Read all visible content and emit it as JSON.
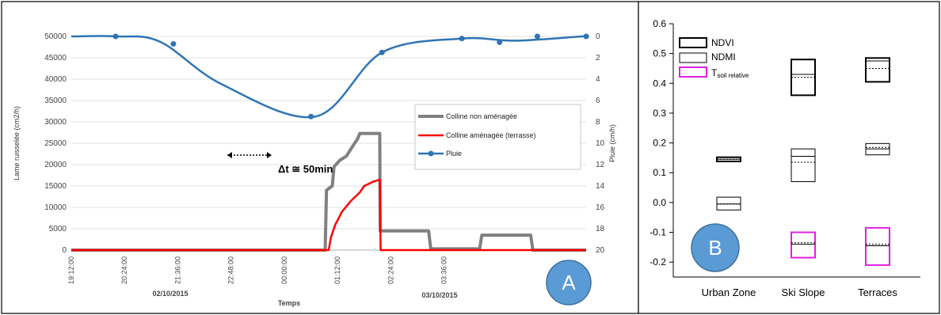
{
  "chart_data": [
    {
      "type": "line",
      "panel_label": "A",
      "xlabel": "Temps",
      "ylabel": "Lame ruisselée (cm2/h)",
      "ylabel_right": "Pluie (cm/h)",
      "x_ticks": [
        "19:12:00",
        "20:24:00",
        "21:36:00",
        "22:48:00",
        "00:00:00",
        "01:12:00",
        "02:24:00",
        "03:36:00"
      ],
      "dates": [
        "02/10/2015",
        "03/10/2015"
      ],
      "ylim": [
        0,
        50000
      ],
      "y_ticks": [
        "0",
        "5000",
        "10000",
        "15000",
        "20000",
        "25000",
        "30000",
        "35000",
        "40000",
        "45000",
        "50000"
      ],
      "ylim_right": [
        20,
        0
      ],
      "y_ticks_right": [
        "0",
        "2",
        "4",
        "6",
        "8",
        "10",
        "12",
        "14",
        "16",
        "18",
        "20"
      ],
      "annotation": "Δt ≅ 50min",
      "grid": true,
      "legend_position": "right",
      "series": [
        {
          "name": "Colline non aménagée",
          "color": "#808080",
          "axis": "left",
          "points": [
            [
              0,
              0
            ],
            [
              5.72,
              0
            ],
            [
              5.75,
              14000
            ],
            [
              5.88,
              15000
            ],
            [
              5.92,
              19500
            ],
            [
              6.05,
              21000
            ],
            [
              6.2,
              22000
            ],
            [
              6.32,
              24000
            ],
            [
              6.45,
              26000
            ],
            [
              6.5,
              27300
            ],
            [
              6.95,
              27300
            ],
            [
              6.96,
              4500
            ],
            [
              8.05,
              4500
            ],
            [
              8.1,
              300
            ],
            [
              9.2,
              300
            ],
            [
              9.25,
              3500
            ],
            [
              10.35,
              3500
            ],
            [
              10.4,
              0
            ],
            [
              11.6,
              0
            ]
          ]
        },
        {
          "name": "Colline aménagée (terrasse)",
          "color": "#ff0000",
          "axis": "left",
          "points": [
            [
              0,
              0
            ],
            [
              5.8,
              0
            ],
            [
              5.85,
              3000
            ],
            [
              5.95,
              6000
            ],
            [
              6.1,
              9000
            ],
            [
              6.3,
              11500
            ],
            [
              6.5,
              13500
            ],
            [
              6.6,
              15000
            ],
            [
              6.8,
              16000
            ],
            [
              6.95,
              16500
            ],
            [
              6.97,
              0
            ],
            [
              11.6,
              0
            ]
          ]
        },
        {
          "name": "Pluie",
          "color": "#2e75b6",
          "axis": "right",
          "points": [
            [
              0,
              0
            ],
            [
              1,
              0
            ],
            [
              2,
              0.5
            ],
            [
              3.4,
              4.5
            ],
            [
              5.5,
              7.5
            ],
            [
              7,
              1.5
            ],
            [
              8.8,
              0.2
            ],
            [
              10,
              0.4
            ],
            [
              11.5,
              0
            ],
            [
              11.6,
              0
            ]
          ],
          "markers": [
            [
              1,
              0
            ],
            [
              2.3,
              0.7
            ],
            [
              5.4,
              7.5
            ],
            [
              7,
              1.5
            ],
            [
              8.8,
              0.2
            ],
            [
              9.65,
              0.55
            ],
            [
              10.5,
              0
            ],
            [
              11.6,
              0
            ]
          ]
        }
      ]
    },
    {
      "type": "box",
      "panel_label": "B",
      "categories": [
        "Urban Zone",
        "Ski Slope",
        "Terraces"
      ],
      "ylim": [
        -0.25,
        0.6
      ],
      "y_ticks": [
        "-0.2",
        "-0.1",
        "0.0",
        "0.1",
        "0.2",
        "0.3",
        "0.4",
        "0.5",
        "0.6"
      ],
      "legend": [
        {
          "label": "NDVI",
          "sub": "",
          "color": "#000000",
          "style": "thick"
        },
        {
          "label": "NDMI",
          "sub": "",
          "color": "#000000",
          "style": "thin"
        },
        {
          "label": "T",
          "sub": "soil relative",
          "color": "#e020e0",
          "style": "thick"
        }
      ],
      "series": [
        {
          "name": "NDVI",
          "color": "#000000",
          "stroke": 2,
          "boxes": [
            {
              "q1": 0.138,
              "med": 0.145,
              "q3": 0.152,
              "mean": 0.145
            },
            {
              "q1": 0.36,
              "med": 0.43,
              "q3": 0.48,
              "mean": 0.42
            },
            {
              "q1": 0.405,
              "med": 0.475,
              "q3": 0.485,
              "mean": 0.45
            }
          ]
        },
        {
          "name": "NDMI",
          "color": "#000000",
          "stroke": 1,
          "boxes": [
            {
              "q1": -0.025,
              "med": -0.005,
              "q3": 0.018,
              "mean": -0.005
            },
            {
              "q1": 0.07,
              "med": 0.155,
              "q3": 0.18,
              "mean": 0.135
            },
            {
              "q1": 0.16,
              "med": 0.18,
              "q3": 0.198,
              "mean": 0.185
            }
          ]
        },
        {
          "name": "T soil relative",
          "color": "#e020e0",
          "stroke": 2,
          "boxes": [
            {
              "q1": null,
              "med": null,
              "q3": null,
              "mean": null
            },
            {
              "q1": -0.185,
              "med": -0.14,
              "q3": -0.1,
              "mean": -0.135
            },
            {
              "q1": -0.21,
              "med": -0.145,
              "q3": -0.085,
              "mean": -0.14
            }
          ]
        }
      ]
    }
  ]
}
